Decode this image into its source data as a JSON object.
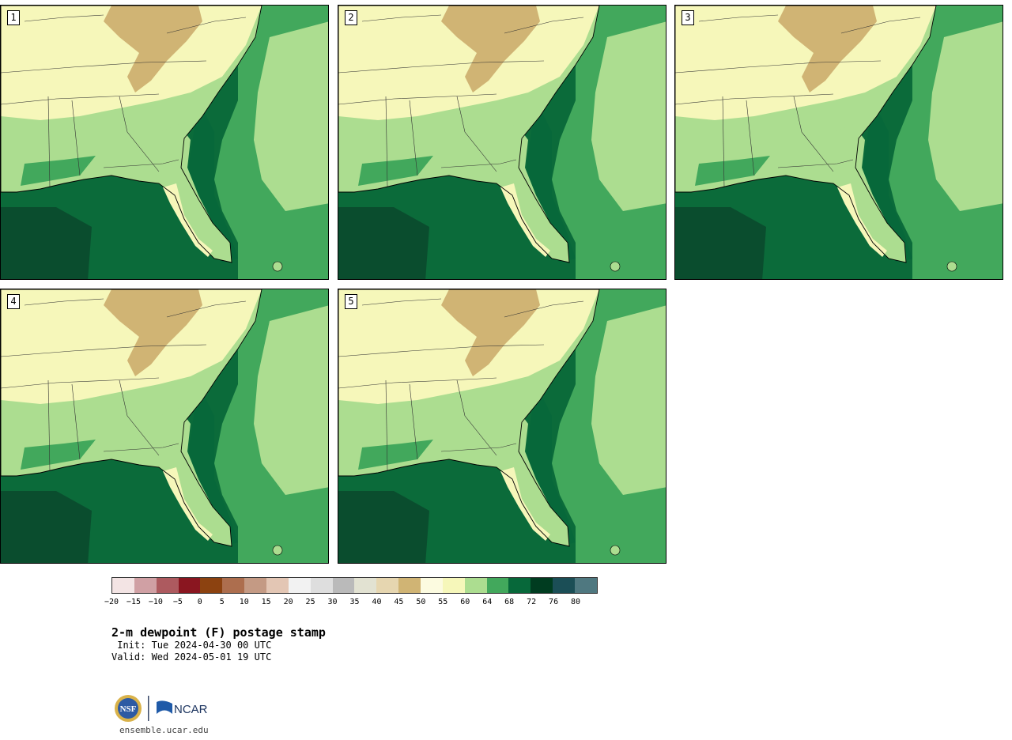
{
  "product": {
    "title": "2-m dewpoint (F) postage stamp",
    "init": " Init: Tue 2024-04-30 00 UTC",
    "valid": "Valid: Wed 2024-05-01 19 UTC",
    "website": "ensemble.ucar.edu"
  },
  "members": [
    {
      "label": "1"
    },
    {
      "label": "2"
    },
    {
      "label": "3"
    },
    {
      "label": "4"
    },
    {
      "label": "5"
    }
  ],
  "colorbar": {
    "colors": [
      "#f3e4e4",
      "#d0a0a4",
      "#ad5a5f",
      "#8a1620",
      "#8c4210",
      "#ad6e4e",
      "#c49a84",
      "#e3c6b4",
      "#f2f2f2",
      "#dedede",
      "#bababa",
      "#e2e2d2",
      "#e6d6b0",
      "#d0b474",
      "#fcfbe0",
      "#f6f7ba",
      "#acdd90",
      "#42a85c",
      "#07683a",
      "#003c20",
      "#1b4e56",
      "#4f7880"
    ],
    "tick_labels": [
      "−20",
      "−15",
      "−10",
      "−5",
      "0",
      "5",
      "10",
      "15",
      "20",
      "25",
      "30",
      "35",
      "40",
      "45",
      "50",
      "55",
      "60",
      "64",
      "68",
      "72",
      "76",
      "80"
    ]
  },
  "logos": {
    "nsf": "NSF",
    "ncar": "NCAR"
  },
  "map_colors": {
    "gulf_deep": "#0a4d2e",
    "gulf": "#0b6b3a",
    "shelf": "#42a85c",
    "atlantic_far": "#acdd90",
    "inland_moist": "#f6f7ba",
    "mountains_dry": "#d0b474",
    "lowland": "#acdd90"
  }
}
